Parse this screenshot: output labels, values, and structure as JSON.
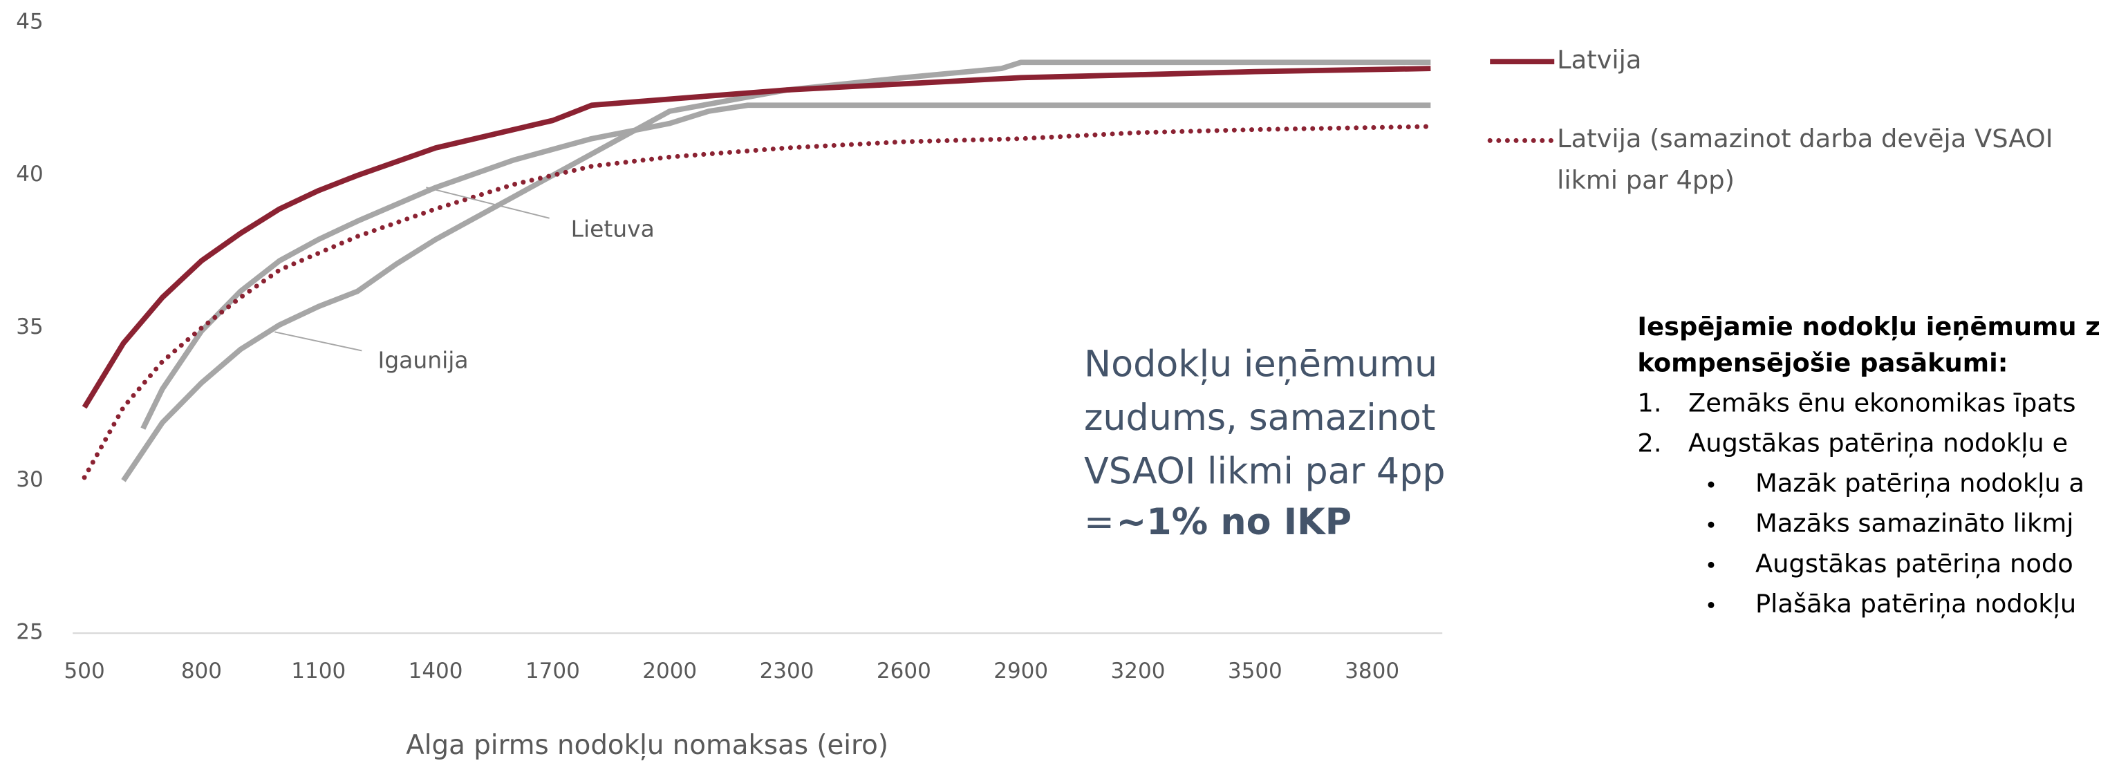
{
  "chart_data": {
    "type": "line",
    "x_label": "Alga pirms nodokļu nomaksas (eiro)",
    "xlim": [
      470,
      3980
    ],
    "xticks": [
      500,
      800,
      1100,
      1400,
      1700,
      2000,
      2300,
      2600,
      2900,
      3200,
      3500,
      3800
    ],
    "ylim": [
      25,
      45
    ],
    "yticks": [
      25,
      30,
      35,
      40,
      45
    ],
    "grid": false,
    "legend": "right",
    "series": [
      {
        "name": "Latvija",
        "color": "#8b2232",
        "style": "solid",
        "labeled": "legend",
        "x": [
          500,
          600,
          700,
          800,
          900,
          1000,
          1100,
          1200,
          1400,
          1600,
          1700,
          1800,
          2000,
          2300,
          2600,
          2900,
          3200,
          3500,
          3950
        ],
        "values": [
          32.4,
          34.5,
          36.0,
          37.2,
          38.1,
          38.9,
          39.5,
          40.0,
          40.9,
          41.5,
          41.8,
          42.3,
          42.5,
          42.8,
          43.0,
          43.2,
          43.3,
          43.4,
          43.5
        ]
      },
      {
        "name": "Latvija (samazinot darba devēja VSAOI likmi par 4pp)",
        "color": "#8b2232",
        "style": "dotted",
        "labeled": "legend",
        "x": [
          500,
          600,
          700,
          800,
          900,
          1000,
          1200,
          1400,
          1600,
          1800,
          2000,
          2300,
          2600,
          2900,
          3200,
          3500,
          3950
        ],
        "values": [
          30.1,
          32.4,
          33.9,
          35.0,
          36.0,
          36.9,
          38.0,
          38.9,
          39.7,
          40.3,
          40.6,
          40.9,
          41.1,
          41.2,
          41.4,
          41.5,
          41.6
        ]
      },
      {
        "name": "Lietuva",
        "color": "#a6a6a6",
        "style": "solid",
        "labeled": "callout",
        "x": [
          650,
          700,
          800,
          900,
          1000,
          1100,
          1200,
          1400,
          1600,
          1800,
          2000,
          2100,
          2200,
          3950
        ],
        "values": [
          31.7,
          33.0,
          34.9,
          36.2,
          37.2,
          37.9,
          38.5,
          39.6,
          40.5,
          41.2,
          41.7,
          42.1,
          42.3,
          42.3
        ]
      },
      {
        "name": "Igaunija",
        "color": "#a6a6a6",
        "style": "solid",
        "labeled": "callout",
        "x": [
          600,
          700,
          800,
          900,
          1000,
          1100,
          1200,
          1300,
          1400,
          1600,
          1800,
          2000,
          2300,
          2600,
          2850,
          2900,
          3950
        ],
        "values": [
          30.0,
          31.9,
          33.2,
          34.3,
          35.1,
          35.7,
          36.2,
          37.1,
          37.9,
          39.3,
          40.7,
          42.1,
          42.8,
          43.2,
          43.5,
          43.7,
          43.7
        ]
      }
    ],
    "annotation": {
      "lines": [
        "Nodokļu ieņēmumu",
        "zudums, samazinot",
        "VSAOI likmi par 4pp"
      ],
      "prefix": "=",
      "emphasis": "~1% no IKP"
    }
  },
  "side_panel": {
    "heading": [
      "Iespējamie nodokļu ieņēmumu z",
      "kompensējošie pasākumi:"
    ],
    "items": [
      {
        "marker": "1.",
        "text": "Zemāks ēnu ekonomikas īpats"
      },
      {
        "marker": "2.",
        "text": "Augstākas patēriņa nodokļu e"
      }
    ],
    "bullets": [
      "Mazāk patēriņa nodokļu a",
      "Mazāks samazināto likmj",
      "Augstākas patēriņa nodo",
      "Plašāka patēriņa nodokļu"
    ]
  }
}
